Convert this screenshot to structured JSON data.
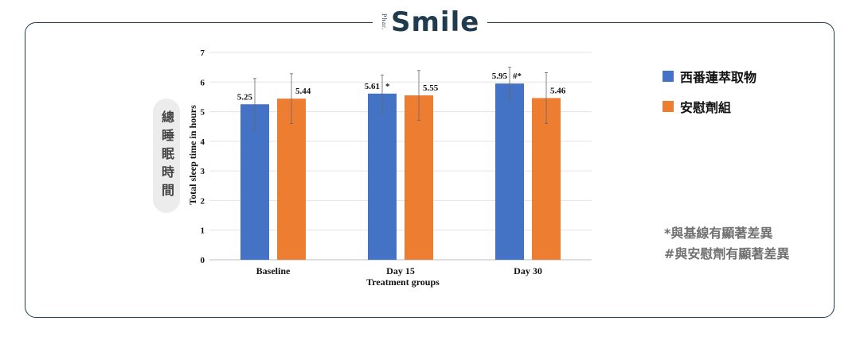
{
  "brand": {
    "sub": "Phar.",
    "name": "Smile"
  },
  "y_label_zh": "總睡眠時間",
  "legend": [
    {
      "label": "西番蓮萃取物",
      "color": "#4472C4"
    },
    {
      "label": "安慰劑組",
      "color": "#ED7D31"
    }
  ],
  "notes": {
    "line1": "*與基線有顯著差異",
    "line2": "#與安慰劑有顯著差異"
  },
  "chart_data": {
    "type": "bar",
    "categories": [
      "Baseline",
      "Day 15",
      "Day 30"
    ],
    "series": [
      {
        "name": "西番蓮萃取物",
        "color": "#4472C4",
        "values": [
          5.25,
          5.61,
          5.95
        ],
        "errors": [
          0.87,
          0.63,
          0.55
        ],
        "value_labels": [
          "5.25",
          "5.61",
          "5.95"
        ],
        "annotations": [
          "",
          "*",
          "#*"
        ]
      },
      {
        "name": "安慰劑組",
        "color": "#ED7D31",
        "values": [
          5.44,
          5.55,
          5.46
        ],
        "errors": [
          0.84,
          0.84,
          0.86
        ],
        "value_labels": [
          "5.44",
          "5.55",
          "5.46"
        ],
        "annotations": [
          "",
          "",
          ""
        ]
      }
    ],
    "ylabel": "Total sleep time in hours",
    "xlabel": "Treatment groups",
    "ylim": [
      0,
      7
    ],
    "yticks": [
      "0",
      "1",
      "2",
      "3",
      "4",
      "5",
      "6",
      "7"
    ],
    "grid": true
  }
}
